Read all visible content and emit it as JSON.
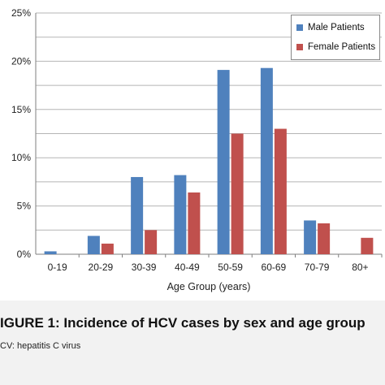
{
  "chart_data": {
    "type": "bar",
    "categories": [
      "0-19",
      "20-29",
      "30-39",
      "40-49",
      "50-59",
      "60-69",
      "70-79",
      "80+"
    ],
    "series": [
      {
        "name": "Male Patients",
        "color": "#4f81bd",
        "values": [
          0.3,
          1.9,
          8.0,
          8.2,
          19.1,
          19.3,
          3.5,
          0.0
        ]
      },
      {
        "name": "Female Patients",
        "color": "#c0504d",
        "values": [
          0.0,
          1.1,
          2.5,
          6.4,
          12.5,
          13.0,
          3.2,
          1.7
        ]
      }
    ],
    "xlabel": "Age Group (years)",
    "ylabel": "",
    "ylim": [
      0,
      25
    ],
    "yticks": [
      "0%",
      "5%",
      "10%",
      "15%",
      "20%",
      "25%"
    ],
    "grid": true,
    "legend_position": "top-right"
  },
  "caption": "IGURE 1: Incidence of HCV cases by sex and age group",
  "note": "CV: hepatitis C virus"
}
